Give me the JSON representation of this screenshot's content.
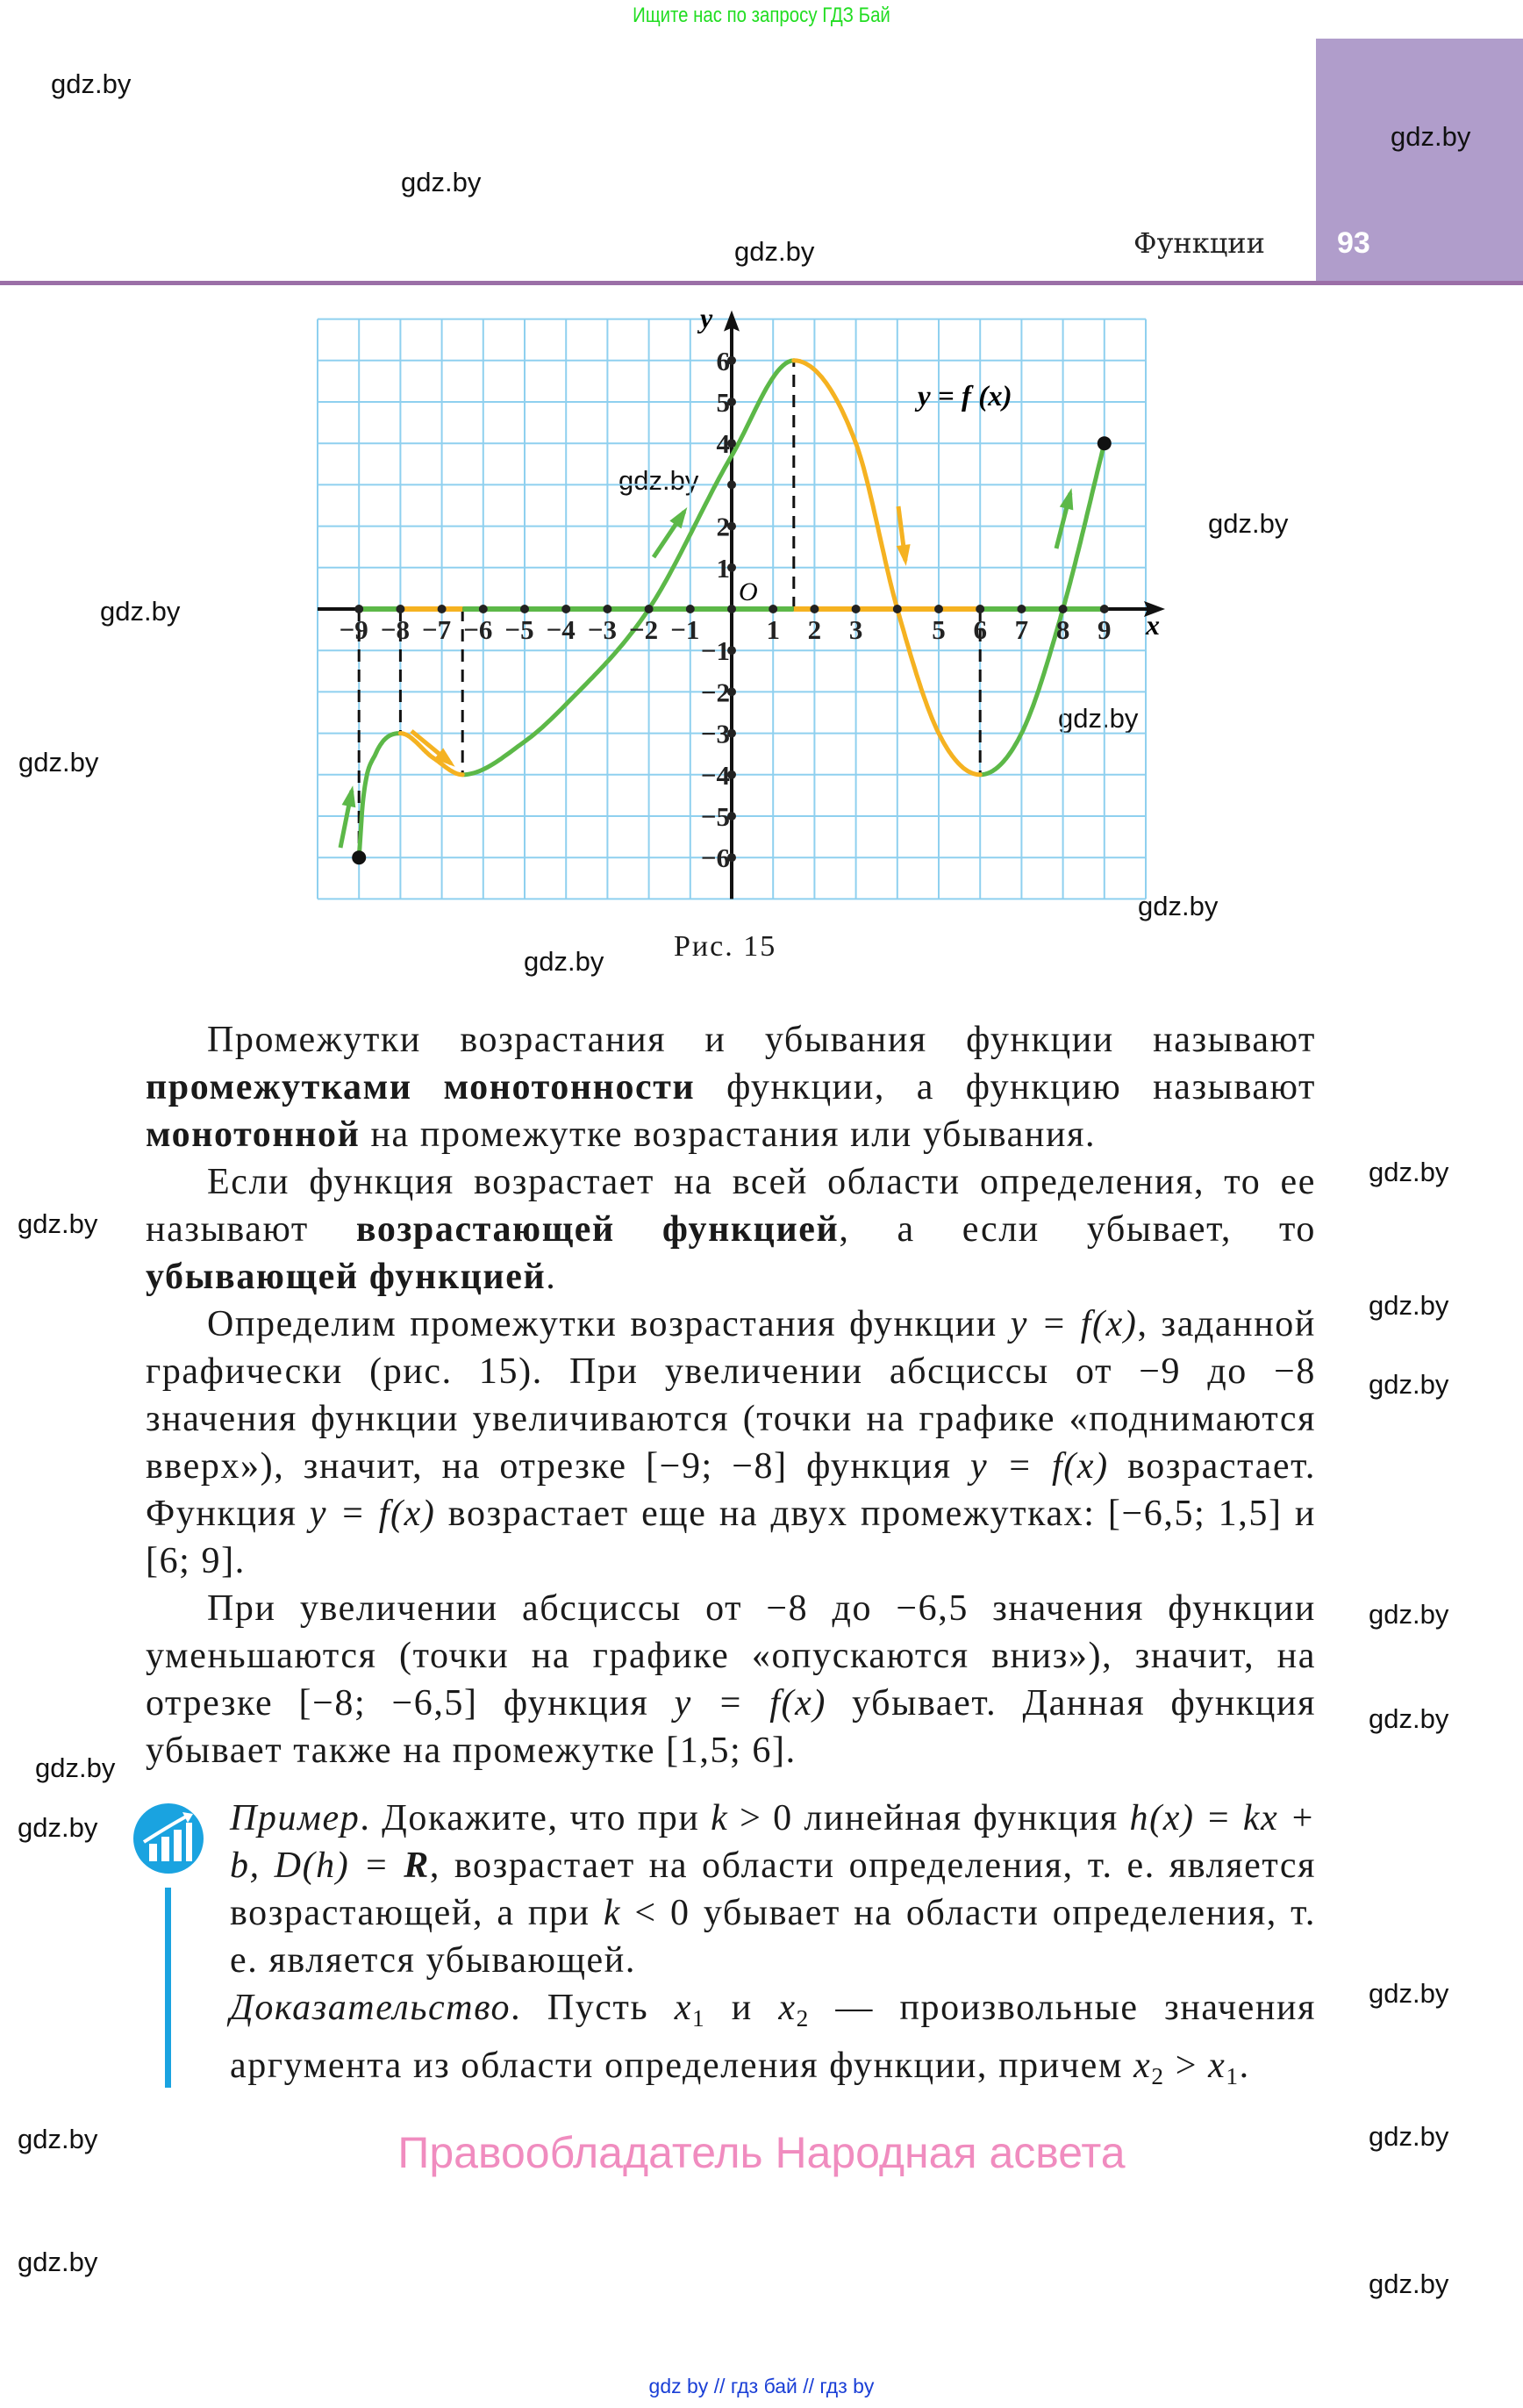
{
  "header": {
    "top_ad": "Ищите нас по запросу ГДЗ Бай",
    "chapter": "Функции",
    "page_number": "93",
    "accent_color": "#b09dcb"
  },
  "watermarks": [
    "gdz.by",
    "gdz.by",
    "gdz.by",
    "gdz.by",
    "gdz.by",
    "gdz.by",
    "gdz.by",
    "gdz.by",
    "gdz.by",
    "gdz.by",
    "gdz.by",
    "gdz.by",
    "gdz.by",
    "gdz.by",
    "gdz.by",
    "gdz.by",
    "gdz.by",
    "gdz.by",
    "gdz.by",
    "gdz.by",
    "gdz.by",
    "gdz.by",
    "gdz.by",
    "gdz.by"
  ],
  "figure": {
    "caption": "Рис. 15",
    "function_label": "y = f (x)",
    "x_axis_label": "x",
    "y_axis_label": "y",
    "origin_label": "O",
    "x_tick_labels": [
      "−9",
      "−8",
      "−7",
      "−6",
      "−5",
      "−4",
      "−3",
      "−2",
      "−1",
      "1",
      "2",
      "3",
      "5",
      "6",
      "7",
      "8",
      "9"
    ],
    "y_tick_labels": [
      "6",
      "5",
      "4",
      "2",
      "1",
      "−1",
      "−2",
      "−3",
      "−4",
      "−5",
      "−6"
    ]
  },
  "chart_data": {
    "type": "line",
    "xlim": [
      -10,
      10
    ],
    "ylim": [
      -7,
      7
    ],
    "grid": true,
    "x_ticks": [
      -9,
      -8,
      -7,
      -6,
      -5,
      -4,
      -3,
      -2,
      -1,
      1,
      2,
      3,
      5,
      6,
      7,
      8,
      9
    ],
    "y_ticks": [
      6,
      5,
      4,
      2,
      1,
      -1,
      -2,
      -3,
      -4,
      -5,
      -6
    ],
    "points": [
      [
        -9,
        -6
      ],
      [
        -8.9,
        -4.6
      ],
      [
        -8.6,
        -3.5
      ],
      [
        -8,
        -3
      ],
      [
        -7.2,
        -3.6
      ],
      [
        -6.5,
        -4
      ],
      [
        -5,
        -3.2
      ],
      [
        -4,
        -2.3
      ],
      [
        -2,
        0
      ],
      [
        0,
        3.7
      ],
      [
        1.5,
        6
      ],
      [
        3,
        4
      ],
      [
        4,
        0
      ],
      [
        5,
        -3
      ],
      [
        6,
        -4
      ],
      [
        7,
        -3
      ],
      [
        8,
        0
      ],
      [
        9,
        4
      ]
    ],
    "increasing_intervals": [
      [
        -9,
        -8
      ],
      [
        -6.5,
        1.5
      ],
      [
        6,
        9
      ]
    ],
    "decreasing_intervals": [
      [
        -8,
        -6.5
      ],
      [
        1.5,
        6
      ]
    ],
    "dashed_x": [
      -9,
      -8,
      -6.5,
      1.5,
      6
    ],
    "increasing_color": "#5cb848",
    "decreasing_color": "#f5b221",
    "grid_color": "#8fd0ef"
  },
  "body": {
    "paragraphs": [
      [
        {
          "t": "Промежутки возрастания и убывания функции называют "
        },
        {
          "t": "промежутками монотонности",
          "s": "b"
        },
        {
          "t": " функции, а функцию называют "
        },
        {
          "t": "монотонной",
          "s": "b"
        },
        {
          "t": " на промежутке возрастания или убывания."
        }
      ],
      [
        {
          "t": "Если функция возрастает на всей области определения, то ее называют "
        },
        {
          "t": "возрастающей функцией",
          "s": "b"
        },
        {
          "t": ", а если убывает, то "
        },
        {
          "t": "убывающей функцией",
          "s": "b"
        },
        {
          "t": "."
        }
      ],
      [
        {
          "t": "Определим промежутки возрастания функции "
        },
        {
          "t": "y = f(x)",
          "s": "i"
        },
        {
          "t": ", заданной графически (рис. 15). При увеличении абсциссы от −9 до −8 значения функции увеличиваются (точки на графике «поднимаются вверх»), значит, на отрезке [−9; −8] функция "
        },
        {
          "t": "y = f(x)",
          "s": "i"
        },
        {
          "t": " возрастает. Функция "
        },
        {
          "t": "y = f(x)",
          "s": "i"
        },
        {
          "t": " возрастает еще на двух промежутках: [−6,5; 1,5] и [6; 9]."
        }
      ],
      [
        {
          "t": "При увеличении абсциссы от −8 до −6,5 значения функции уменьшаются (точки на графике «опускаются вниз»), значит, на отрезке [−8; −6,5] функция "
        },
        {
          "t": "y = f(x)",
          "s": "i"
        },
        {
          "t": " убывает. Данная функция убывает также на промежутке [1,5; 6]."
        }
      ]
    ]
  },
  "example": {
    "icon": "chart-growth-icon",
    "paragraphs": [
      [
        {
          "t": "Пример",
          "s": "i"
        },
        {
          "t": ". Докажите, что при "
        },
        {
          "t": "k",
          "s": "i"
        },
        {
          "t": " > 0 линейная функция "
        },
        {
          "t": "h(x) = kx + b, D(h) = ",
          "s": "i"
        },
        {
          "t": "R",
          "s": "bi"
        },
        {
          "t": ", возрастает на области определения, т. е. является возрастающей, а при "
        },
        {
          "t": "k",
          "s": "i"
        },
        {
          "t": " < 0 убывает на области определения, т. е. является убывающей."
        }
      ],
      [
        {
          "t": "Доказательство",
          "s": "i"
        },
        {
          "t": ". Пусть "
        },
        {
          "t": "x",
          "s": "i"
        },
        {
          "t": "1",
          "s": "sub"
        },
        {
          "t": " и "
        },
        {
          "t": "x",
          "s": "i"
        },
        {
          "t": "2",
          "s": "sub"
        },
        {
          "t": " — произвольные значения аргумента из области определения функции, причем "
        },
        {
          "t": "x",
          "s": "i"
        },
        {
          "t": "2",
          "s": "sub"
        },
        {
          "t": " > "
        },
        {
          "t": "x",
          "s": "i"
        },
        {
          "t": "1",
          "s": "sub"
        },
        {
          "t": "."
        }
      ]
    ]
  },
  "footer": {
    "rights": "Правообладатель Народная асвета",
    "links": "gdz by  //  гдз бай  //  гдз by"
  }
}
